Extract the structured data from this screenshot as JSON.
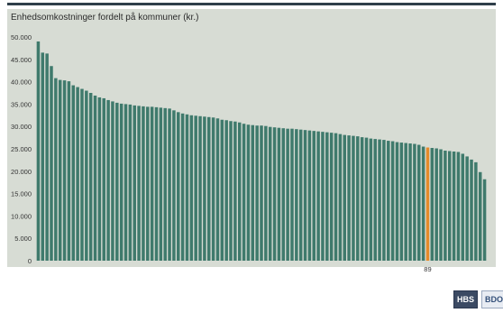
{
  "chart_data": {
    "type": "bar",
    "title": "Enhedsomkostninger fordelt på kommuner (kr.)",
    "xlabel": "",
    "ylabel": "",
    "ylim": [
      0,
      50000
    ],
    "yticks": [
      0,
      5000,
      10000,
      15000,
      20000,
      25000,
      30000,
      35000,
      40000,
      45000,
      50000
    ],
    "ytick_labels": [
      "0",
      "5.000",
      "10.000",
      "15.000",
      "20.000",
      "25.000",
      "30.000",
      "35.000",
      "40.000",
      "45.000",
      "50.000"
    ],
    "grid": false,
    "colors": {
      "bar": "#3f7a6c",
      "highlight": "#e58a2a",
      "background": "#d7dcd4"
    },
    "highlight_label": "89",
    "highlight_index": 89,
    "values": [
      49000,
      46500,
      46300,
      43500,
      40800,
      40400,
      40300,
      40100,
      39200,
      38800,
      38400,
      38000,
      37500,
      36900,
      36500,
      36300,
      35900,
      35600,
      35300,
      35100,
      35000,
      34900,
      34700,
      34600,
      34500,
      34400,
      34400,
      34300,
      34200,
      34100,
      34000,
      33600,
      33200,
      32900,
      32700,
      32500,
      32400,
      32300,
      32200,
      32100,
      32000,
      31800,
      31500,
      31400,
      31200,
      31100,
      30900,
      30600,
      30400,
      30300,
      30200,
      30200,
      30100,
      29900,
      29800,
      29700,
      29600,
      29500,
      29500,
      29400,
      29300,
      29200,
      29100,
      29000,
      28900,
      28800,
      28700,
      28600,
      28500,
      28300,
      28100,
      28000,
      27900,
      27800,
      27600,
      27500,
      27300,
      27200,
      27100,
      27000,
      26800,
      26700,
      26500,
      26400,
      26300,
      26200,
      26100,
      25900,
      25500,
      25300,
      25200,
      25100,
      24900,
      24600,
      24500,
      24400,
      24300,
      23900,
      23300,
      22600,
      22000,
      19800,
      18200
    ]
  },
  "logos": {
    "left": "HBS",
    "right": "BDO"
  }
}
